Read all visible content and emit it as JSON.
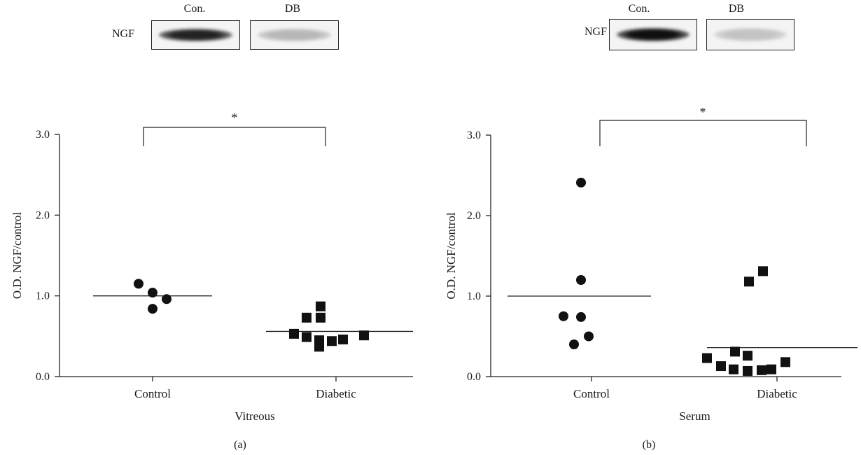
{
  "chart_data": [
    {
      "type": "scatter",
      "panel_label": "(a)",
      "xlabel": "Vitreous",
      "ylabel": "O.D. NGF/control",
      "categories": [
        "Control",
        "Diabetic"
      ],
      "ylim": [
        0,
        3
      ],
      "yticks": [
        "0.0",
        "1.0",
        "2.0",
        "3.0"
      ],
      "significance": "*",
      "series": [
        {
          "category": "Control",
          "marker": "circle",
          "values": [
            1.15,
            1.04,
            0.96,
            0.84
          ],
          "mean": 1.0
        },
        {
          "category": "Diabetic",
          "marker": "square",
          "values": [
            0.53,
            0.49,
            0.45,
            0.73,
            0.73,
            0.37,
            0.44,
            0.87,
            0.46,
            0.51
          ],
          "mean": 0.56
        }
      ],
      "blot": {
        "row_label": "NGF",
        "lanes": [
          "Con.",
          "DB"
        ],
        "intensity": [
          0.92,
          0.3
        ]
      }
    },
    {
      "type": "scatter",
      "panel_label": "(b)",
      "xlabel": "Serum",
      "ylabel": "O.D. NGF/control",
      "categories": [
        "Control",
        "Diabetic"
      ],
      "ylim": [
        0,
        3
      ],
      "yticks": [
        "0.0",
        "1.0",
        "2.0",
        "3.0"
      ],
      "significance": "*",
      "series": [
        {
          "category": "Control",
          "marker": "circle",
          "values": [
            2.41,
            1.2,
            0.75,
            0.74,
            0.4,
            0.5
          ],
          "mean": 1.0
        },
        {
          "category": "Diabetic",
          "marker": "square",
          "values": [
            0.23,
            0.13,
            0.31,
            0.09,
            0.07,
            0.26,
            1.18,
            0.08,
            1.31,
            0.09,
            0.18
          ],
          "mean": 0.36
        }
      ],
      "blot": {
        "row_label": "NGF",
        "lanes": [
          "Con.",
          "DB"
        ],
        "intensity": [
          1.0,
          0.25
        ]
      }
    }
  ]
}
